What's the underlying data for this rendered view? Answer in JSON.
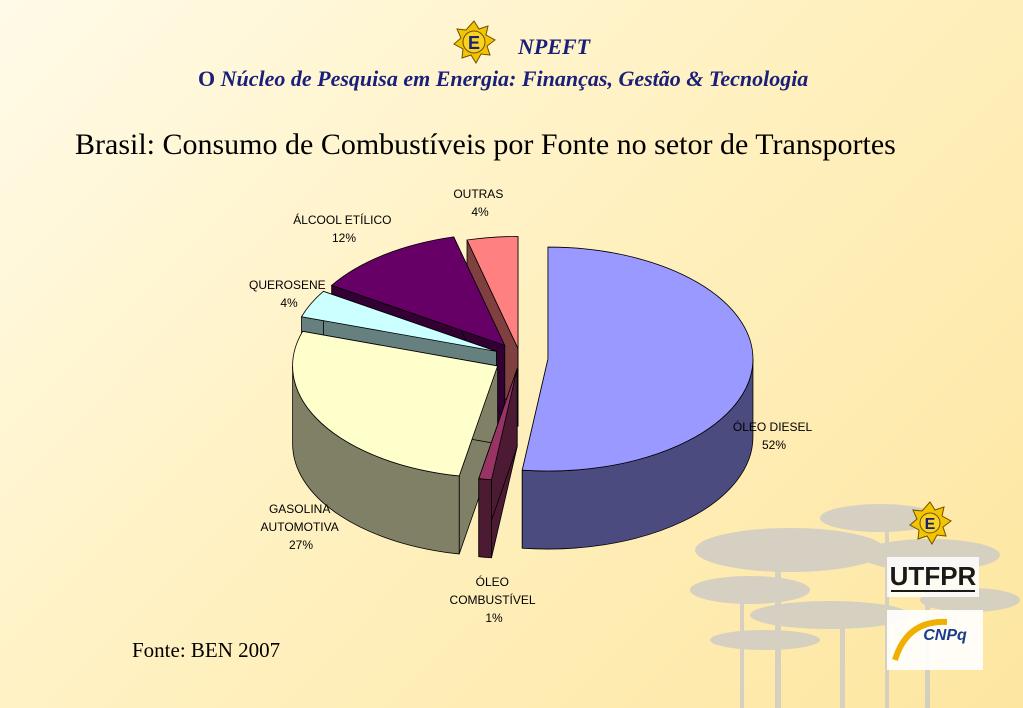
{
  "header": {
    "acronym": "NPEFT",
    "full_name_lead": "O",
    "full_name_rest": "Núcleo de Pesquisa em Energia: Finanças, Gestão & Tecnologia",
    "logo_letter": "E",
    "logo_icon": "star-emblem-icon"
  },
  "chart_data": {
    "type": "pie",
    "title": "Brasil: Consumo de Combustíveis por Fonte no setor de Transportes",
    "slices": [
      {
        "label": "ÓLEO DIESEL",
        "value": 52,
        "pct": "52%",
        "color": "#9999ff",
        "side": "#4b4b80"
      },
      {
        "label": "ÓLEO COMBUSTÍVEL",
        "value": 1,
        "pct": "1%",
        "color": "#993366",
        "side": "#4d1a33"
      },
      {
        "label": "GASOLINA AUTOMOTIVA",
        "value": 27,
        "pct": "27%",
        "color": "#ffffcc",
        "side": "#808066"
      },
      {
        "label": "QUEROSENE",
        "value": 4,
        "pct": "4%",
        "color": "#ccffff",
        "side": "#668080"
      },
      {
        "label": "ÁLCOOL ETÍLICO",
        "value": 12,
        "pct": "12%",
        "color": "#660066",
        "side": "#330033"
      },
      {
        "label": "OUTRAS",
        "value": 4,
        "pct": "4%",
        "color": "#ff8080",
        "side": "#804040"
      }
    ],
    "label_lines": {
      "diesel": [
        "ÓLEO DIESEL",
        "52%"
      ],
      "oleo": [
        "ÓLEO",
        "COMBUSTÍVEL",
        "1%"
      ],
      "gasolina": [
        "GASOLINA",
        "AUTOMOTIVA",
        "27%"
      ],
      "querosene": [
        "QUEROSENE",
        "4%"
      ],
      "alcool": [
        "ÁLCOOL ETÍLICO",
        "12%"
      ],
      "outras": [
        "OUTRAS",
        "4%"
      ]
    }
  },
  "footer": {
    "source": "Fonte: BEN 2007",
    "logos": [
      "star-emblem-icon",
      "utfpr-logo",
      "cnpq-logo"
    ],
    "utfpr_text": "UTFPR",
    "cnpq_text": "CNPq"
  }
}
